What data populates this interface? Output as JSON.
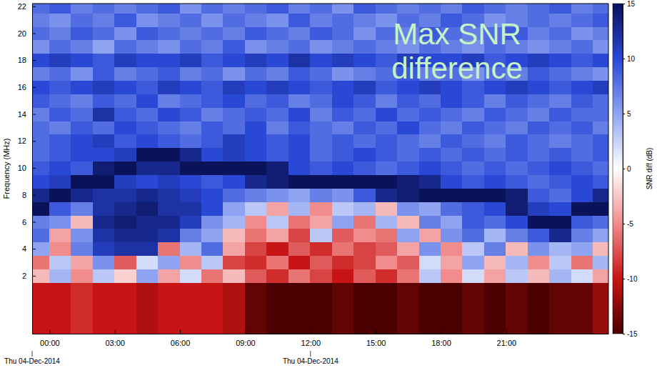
{
  "chart_data": {
    "type": "heatmap",
    "y_label": "Frequency (MHz)",
    "annotation": "Max SNR difference",
    "xlim": [
      -0.8,
      25.7
    ],
    "ylim": [
      -2.3,
      22.2
    ],
    "xticks": [
      {
        "value": 0,
        "label": "00:00"
      },
      {
        "value": 3,
        "label": "03:00"
      },
      {
        "value": 6,
        "label": "06:00"
      },
      {
        "value": 9,
        "label": "09:00"
      },
      {
        "value": 12,
        "label": "12:00"
      },
      {
        "value": 15,
        "label": "15:00"
      },
      {
        "value": 18,
        "label": "18:00"
      },
      {
        "value": 21,
        "label": "21:00"
      }
    ],
    "x_date_ticks": [
      {
        "value": -0.8,
        "label": "Thu 04-Dec-2014"
      },
      {
        "value": 12,
        "label": "Thu 04-Dec-2014"
      }
    ],
    "yticks": [
      2,
      4,
      6,
      8,
      10,
      12,
      14,
      16,
      18,
      20,
      22
    ],
    "x_bins": [
      -1,
      0,
      1,
      2,
      3,
      4,
      5,
      6,
      7,
      8,
      9,
      10,
      11,
      12,
      13,
      14,
      15,
      16,
      17,
      18,
      19,
      20,
      21,
      22,
      23,
      24,
      25,
      26
    ],
    "y_bins": [
      -3,
      1.5,
      2.5,
      3.5,
      4.5,
      5.5,
      6.5,
      7.5,
      8.5,
      9.5,
      10.5,
      11.5,
      12.5,
      13.5,
      14.5,
      15.5,
      16.5,
      17.5,
      18.5,
      19.5,
      20.5,
      21.5,
      22.5
    ],
    "cells": [
      [
        -10,
        -10,
        -9,
        -10,
        -10,
        -11,
        -10,
        -10,
        -10,
        -11,
        -14,
        -15,
        -15,
        -15,
        -14,
        -15,
        -15,
        -14,
        -15,
        -15,
        -14,
        -15,
        -14,
        -15,
        -14,
        -14,
        -12
      ],
      [
        -3,
        4,
        -5,
        3,
        -2,
        5,
        -4,
        2,
        -6,
        -3,
        -7,
        -9,
        -6,
        -8,
        -10,
        -7,
        -9,
        -6,
        3,
        -5,
        2,
        -4,
        3,
        -3,
        4,
        2,
        -4
      ],
      [
        -6,
        3,
        -4,
        6,
        -7,
        2,
        5,
        -5,
        3,
        -8,
        -9,
        -6,
        -10,
        -7,
        -9,
        -8,
        -5,
        -7,
        2,
        -4,
        5,
        -3,
        4,
        -5,
        3,
        -6,
        4
      ],
      [
        5,
        -5,
        7,
        11,
        12,
        12,
        -6,
        4,
        8,
        -4,
        -8,
        -10,
        -7,
        -9,
        -6,
        -8,
        -7,
        -4,
        6,
        -5,
        3,
        7,
        -3,
        6,
        4,
        5,
        -3
      ],
      [
        8,
        -4,
        6,
        12,
        13,
        13,
        12,
        7,
        5,
        -3,
        -6,
        -4,
        -8,
        3,
        -7,
        -5,
        -6,
        5,
        -4,
        6,
        8,
        4,
        7,
        9,
        13,
        7,
        5
      ],
      [
        7,
        6,
        -3,
        13,
        14,
        13,
        13,
        11,
        6,
        4,
        -5,
        3,
        -6,
        -4,
        5,
        -6,
        4,
        -3,
        7,
        5,
        9,
        8,
        10,
        15,
        15,
        9,
        8
      ],
      [
        15,
        9,
        7,
        12,
        13,
        14,
        12,
        12,
        10,
        5,
        3,
        -4,
        4,
        -5,
        3,
        4,
        -3,
        6,
        5,
        8,
        9,
        10,
        14,
        11,
        10,
        15,
        15
      ],
      [
        13,
        15,
        13,
        12,
        12,
        13,
        12,
        11,
        10,
        8,
        7,
        6,
        5,
        7,
        6,
        9,
        13,
        14,
        15,
        15,
        15,
        15,
        14,
        9,
        8,
        10,
        13
      ],
      [
        10,
        11,
        15,
        15,
        11,
        10,
        11,
        10,
        9,
        10,
        13,
        14,
        15,
        15,
        15,
        15,
        15,
        14,
        13,
        10,
        9,
        10,
        9,
        8,
        9,
        10,
        9
      ],
      [
        9,
        10,
        9,
        14,
        15,
        13,
        13,
        15,
        15,
        15,
        15,
        14,
        10,
        9,
        10,
        9,
        8,
        9,
        10,
        9,
        8,
        9,
        8,
        9,
        10,
        9,
        8
      ],
      [
        8,
        9,
        10,
        10,
        11,
        15,
        15,
        13,
        10,
        11,
        10,
        9,
        10,
        8,
        9,
        10,
        9,
        8,
        9,
        8,
        9,
        8,
        9,
        8,
        9,
        8,
        9
      ],
      [
        8,
        9,
        10,
        11,
        9,
        10,
        9,
        8,
        9,
        11,
        10,
        9,
        10,
        8,
        9,
        8,
        9,
        8,
        7,
        9,
        8,
        7,
        9,
        8,
        7,
        8,
        9
      ],
      [
        8,
        7,
        9,
        8,
        10,
        9,
        8,
        7,
        9,
        8,
        10,
        7,
        9,
        8,
        7,
        9,
        8,
        10,
        8,
        7,
        9,
        8,
        7,
        9,
        8,
        9,
        7
      ],
      [
        7,
        9,
        8,
        12,
        9,
        8,
        10,
        9,
        7,
        8,
        9,
        8,
        10,
        7,
        9,
        8,
        10,
        8,
        9,
        8,
        7,
        9,
        8,
        7,
        9,
        8,
        8
      ],
      [
        9,
        8,
        7,
        9,
        8,
        10,
        7,
        8,
        9,
        10,
        8,
        9,
        7,
        8,
        10,
        9,
        7,
        9,
        8,
        10,
        9,
        7,
        9,
        8,
        7,
        9,
        8
      ],
      [
        10,
        9,
        10,
        11,
        10,
        9,
        11,
        10,
        9,
        11,
        10,
        11,
        10,
        9,
        10,
        11,
        9,
        10,
        11,
        10,
        9,
        10,
        11,
        10,
        9,
        10,
        11
      ],
      [
        7,
        8,
        6,
        9,
        7,
        8,
        9,
        7,
        8,
        6,
        8,
        7,
        9,
        8,
        6,
        7,
        8,
        9,
        7,
        8,
        6,
        8,
        7,
        9,
        8,
        7,
        6
      ],
      [
        10,
        11,
        10,
        9,
        11,
        10,
        10,
        11,
        9,
        10,
        11,
        10,
        12,
        10,
        11,
        10,
        9,
        11,
        10,
        10,
        11,
        9,
        10,
        11,
        10,
        9,
        10
      ],
      [
        6,
        8,
        7,
        5,
        8,
        7,
        6,
        8,
        7,
        9,
        6,
        7,
        8,
        6,
        7,
        8,
        7,
        6,
        8,
        7,
        6,
        8,
        7,
        6,
        7,
        8,
        6
      ],
      [
        8,
        7,
        9,
        8,
        6,
        9,
        8,
        7,
        8,
        7,
        9,
        8,
        7,
        9,
        8,
        6,
        8,
        7,
        9,
        8,
        7,
        8,
        9,
        7,
        8,
        6,
        7
      ],
      [
        7,
        6,
        8,
        7,
        9,
        6,
        7,
        8,
        6,
        8,
        7,
        6,
        9,
        7,
        8,
        7,
        6,
        8,
        7,
        9,
        8,
        6,
        7,
        8,
        7,
        8,
        9
      ],
      [
        8,
        9,
        7,
        8,
        7,
        8,
        9,
        6,
        8,
        7,
        8,
        9,
        7,
        8,
        6,
        9,
        8,
        7,
        8,
        7,
        9,
        8,
        7,
        8,
        9,
        7,
        8
      ]
    ],
    "colorbar": {
      "label": "SNR diff (dB)",
      "range": [
        -15,
        15
      ],
      "ticks": [
        -15,
        -10,
        -5,
        0,
        5,
        10,
        15
      ]
    }
  }
}
